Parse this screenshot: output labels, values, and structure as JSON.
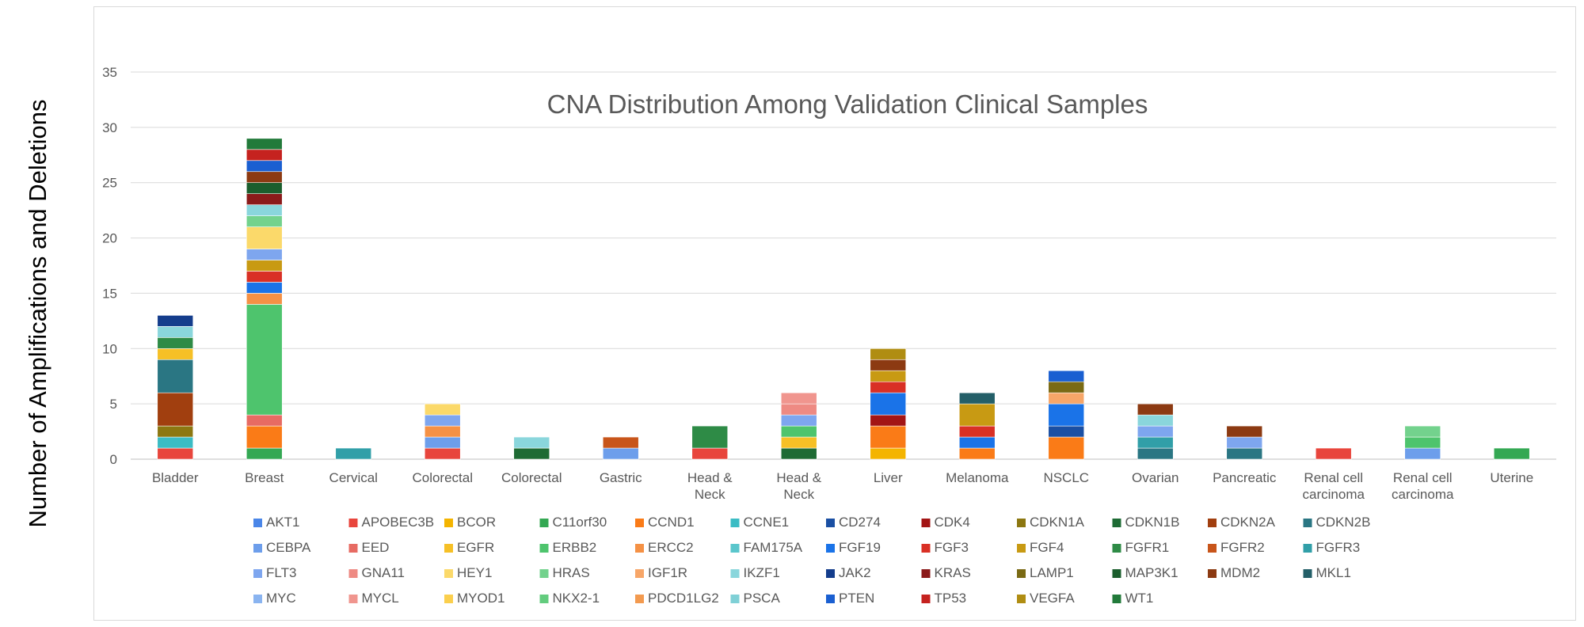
{
  "chart_data": {
    "type": "bar",
    "stacked": true,
    "title": "CNA Distribution Among Validation Clinical Samples",
    "xlabel": "",
    "ylabel": "Number of Amplifications and Deletions",
    "ylim": [
      0,
      35
    ],
    "yticks": [
      0,
      5,
      10,
      15,
      20,
      25,
      30,
      35
    ],
    "grid": true,
    "legend_position": "bottom",
    "categories": [
      "Bladder",
      "Breast",
      "Cervical",
      "Colorectal",
      "Colorectal",
      "Gastric",
      "Head & Neck",
      "Head & Neck",
      "Liver",
      "Melanoma",
      "NSCLC",
      "Ovarian",
      "Pancreatic",
      "Renal cell carcinoma",
      "Renal cell carcinoma",
      "Uterine"
    ],
    "series": [
      {
        "name": "AKT1",
        "color": "#4a86e8",
        "values": [
          0,
          0,
          0,
          0,
          0,
          0,
          0,
          0,
          0,
          0,
          0,
          0,
          0,
          0,
          0,
          0
        ]
      },
      {
        "name": "APOBEC3B",
        "color": "#e8453c",
        "values": [
          1,
          0,
          0,
          1,
          0,
          0,
          1,
          0,
          0,
          0,
          0,
          0,
          0,
          1,
          0,
          0
        ]
      },
      {
        "name": "BCOR",
        "color": "#f4b400",
        "values": [
          0,
          0,
          0,
          0,
          0,
          0,
          0,
          0,
          1,
          0,
          0,
          0,
          0,
          0,
          0,
          0
        ]
      },
      {
        "name": "C11orf30",
        "color": "#34a853",
        "values": [
          0,
          1,
          0,
          0,
          0,
          0,
          0,
          0,
          0,
          0,
          0,
          0,
          0,
          0,
          0,
          1
        ]
      },
      {
        "name": "CCND1",
        "color": "#fa7b17",
        "values": [
          0,
          2,
          0,
          0,
          0,
          0,
          0,
          0,
          2,
          1,
          2,
          0,
          0,
          0,
          0,
          0
        ]
      },
      {
        "name": "CCNE1",
        "color": "#3bbcc4",
        "values": [
          1,
          0,
          0,
          0,
          0,
          0,
          0,
          0,
          0,
          0,
          0,
          0,
          0,
          0,
          0,
          0
        ]
      },
      {
        "name": "CD274",
        "color": "#1a4fa3",
        "values": [
          0,
          0,
          0,
          0,
          0,
          0,
          0,
          0,
          0,
          0,
          1,
          0,
          0,
          0,
          0,
          0
        ]
      },
      {
        "name": "CDK4",
        "color": "#a31515",
        "values": [
          0,
          0,
          0,
          0,
          0,
          0,
          0,
          0,
          1,
          0,
          0,
          0,
          0,
          0,
          0,
          0
        ]
      },
      {
        "name": "CDKN1A",
        "color": "#8c7711",
        "values": [
          1,
          0,
          0,
          0,
          0,
          0,
          0,
          0,
          0,
          0,
          0,
          0,
          0,
          0,
          0,
          0
        ]
      },
      {
        "name": "CDKN1B",
        "color": "#1e6b34",
        "values": [
          0,
          0,
          0,
          0,
          1,
          0,
          0,
          1,
          0,
          0,
          0,
          0,
          0,
          0,
          0,
          0
        ]
      },
      {
        "name": "CDKN2A",
        "color": "#a13f0f",
        "values": [
          3,
          0,
          0,
          0,
          0,
          0,
          0,
          0,
          0,
          0,
          0,
          0,
          0,
          0,
          0,
          0
        ]
      },
      {
        "name": "CDKN2B",
        "color": "#2a7683",
        "values": [
          3,
          0,
          0,
          0,
          0,
          0,
          0,
          0,
          0,
          0,
          0,
          1,
          1,
          0,
          0,
          0
        ]
      },
      {
        "name": "CEBPA",
        "color": "#6d9eeb",
        "values": [
          0,
          0,
          0,
          1,
          0,
          1,
          0,
          0,
          0,
          0,
          0,
          0,
          0,
          0,
          1,
          0
        ]
      },
      {
        "name": "EED",
        "color": "#e76b63",
        "values": [
          0,
          1,
          0,
          0,
          0,
          0,
          0,
          0,
          0,
          0,
          0,
          0,
          0,
          0,
          0,
          0
        ]
      },
      {
        "name": "EGFR",
        "color": "#f6c026",
        "values": [
          1,
          0,
          0,
          0,
          0,
          0,
          0,
          1,
          0,
          0,
          0,
          0,
          0,
          0,
          0,
          0
        ]
      },
      {
        "name": "ERBB2",
        "color": "#4ec46d",
        "values": [
          0,
          10,
          0,
          0,
          0,
          0,
          0,
          1,
          0,
          0,
          0,
          0,
          0,
          0,
          1,
          0
        ]
      },
      {
        "name": "ERCC2",
        "color": "#f59145",
        "values": [
          0,
          1,
          0,
          1,
          0,
          0,
          0,
          0,
          0,
          0,
          0,
          0,
          0,
          0,
          0,
          0
        ]
      },
      {
        "name": "FAM175A",
        "color": "#5ac6cc",
        "values": [
          0,
          0,
          0,
          0,
          0,
          0,
          0,
          0,
          0,
          0,
          0,
          0,
          0,
          0,
          0,
          0
        ]
      },
      {
        "name": "FGF19",
        "color": "#1a73e8",
        "values": [
          0,
          1,
          0,
          0,
          0,
          0,
          0,
          0,
          2,
          1,
          2,
          0,
          0,
          0,
          0,
          0
        ]
      },
      {
        "name": "FGF3",
        "color": "#d93025",
        "values": [
          0,
          1,
          0,
          0,
          0,
          0,
          0,
          0,
          1,
          1,
          0,
          0,
          0,
          0,
          0,
          0
        ]
      },
      {
        "name": "FGF4",
        "color": "#c89a13",
        "values": [
          0,
          1,
          0,
          0,
          0,
          0,
          0,
          0,
          1,
          2,
          0,
          0,
          0,
          0,
          0,
          0
        ]
      },
      {
        "name": "FGFR1",
        "color": "#2e8b46",
        "values": [
          1,
          0,
          0,
          0,
          0,
          0,
          2,
          0,
          0,
          0,
          0,
          0,
          0,
          0,
          0,
          0
        ]
      },
      {
        "name": "FGFR2",
        "color": "#c8551a",
        "values": [
          0,
          0,
          0,
          0,
          0,
          1,
          0,
          0,
          0,
          0,
          0,
          0,
          0,
          0,
          0,
          0
        ]
      },
      {
        "name": "FGFR3",
        "color": "#319fa8",
        "values": [
          0,
          0,
          1,
          0,
          0,
          0,
          0,
          0,
          0,
          0,
          0,
          1,
          0,
          0,
          0,
          0
        ]
      },
      {
        "name": "FLT3",
        "color": "#7ea6ef",
        "values": [
          0,
          1,
          0,
          1,
          0,
          0,
          0,
          1,
          0,
          0,
          0,
          1,
          1,
          0,
          0,
          0
        ]
      },
      {
        "name": "GNA11",
        "color": "#ee8a83",
        "values": [
          0,
          0,
          0,
          0,
          0,
          0,
          0,
          1,
          0,
          0,
          0,
          0,
          0,
          0,
          0,
          0
        ]
      },
      {
        "name": "HEY1",
        "color": "#fbd96a",
        "values": [
          0,
          2,
          0,
          1,
          0,
          0,
          0,
          0,
          0,
          0,
          0,
          0,
          0,
          0,
          0,
          0
        ]
      },
      {
        "name": "HRAS",
        "color": "#73d28d",
        "values": [
          0,
          1,
          0,
          0,
          0,
          0,
          0,
          0,
          0,
          0,
          0,
          0,
          0,
          0,
          1,
          0
        ]
      },
      {
        "name": "IGF1R",
        "color": "#f7a668",
        "values": [
          0,
          0,
          0,
          0,
          0,
          0,
          0,
          0,
          0,
          0,
          1,
          0,
          0,
          0,
          0,
          0
        ]
      },
      {
        "name": "IKZF1",
        "color": "#8ad6dc",
        "values": [
          1,
          1,
          0,
          0,
          1,
          0,
          0,
          0,
          0,
          0,
          0,
          1,
          0,
          0,
          0,
          0
        ]
      },
      {
        "name": "JAK2",
        "color": "#143d8c",
        "values": [
          1,
          0,
          0,
          0,
          0,
          0,
          0,
          0,
          0,
          0,
          0,
          0,
          0,
          0,
          0,
          0
        ]
      },
      {
        "name": "KRAS",
        "color": "#8b1a1a",
        "values": [
          0,
          1,
          0,
          0,
          0,
          0,
          0,
          0,
          0,
          0,
          0,
          0,
          0,
          0,
          0,
          0
        ]
      },
      {
        "name": "LAMP1",
        "color": "#7a6a14",
        "values": [
          0,
          0,
          0,
          0,
          0,
          0,
          0,
          0,
          0,
          0,
          1,
          0,
          0,
          0,
          0,
          0
        ]
      },
      {
        "name": "MAP3K1",
        "color": "#1b5e2d",
        "values": [
          0,
          1,
          0,
          0,
          0,
          0,
          0,
          0,
          0,
          0,
          0,
          0,
          0,
          0,
          0,
          0
        ]
      },
      {
        "name": "MDM2",
        "color": "#8c3a12",
        "values": [
          0,
          1,
          0,
          0,
          0,
          0,
          0,
          0,
          1,
          0,
          0,
          1,
          1,
          0,
          0,
          0
        ]
      },
      {
        "name": "MKL1",
        "color": "#245f68",
        "values": [
          0,
          0,
          0,
          0,
          0,
          0,
          0,
          0,
          0,
          1,
          0,
          0,
          0,
          0,
          0,
          0
        ]
      },
      {
        "name": "MYC",
        "color": "#8ab4f0",
        "values": [
          0,
          0,
          0,
          0,
          0,
          0,
          0,
          0,
          0,
          0,
          0,
          0,
          0,
          0,
          0,
          0
        ]
      },
      {
        "name": "MYCL",
        "color": "#f0958e",
        "values": [
          0,
          0,
          0,
          0,
          0,
          0,
          0,
          1,
          0,
          0,
          0,
          0,
          0,
          0,
          0,
          0
        ]
      },
      {
        "name": "MYOD1",
        "color": "#fbcf4d",
        "values": [
          0,
          0,
          0,
          0,
          0,
          0,
          0,
          0,
          0,
          0,
          0,
          0,
          0,
          0,
          0,
          0
        ]
      },
      {
        "name": "NKX2-1",
        "color": "#63cc7e",
        "values": [
          0,
          0,
          0,
          0,
          0,
          0,
          0,
          0,
          0,
          0,
          0,
          0,
          0,
          0,
          0,
          0
        ]
      },
      {
        "name": "PDCD1LG2",
        "color": "#f39a4f",
        "values": [
          0,
          0,
          0,
          0,
          0,
          0,
          0,
          0,
          0,
          0,
          0,
          0,
          0,
          0,
          0,
          0
        ]
      },
      {
        "name": "PSCA",
        "color": "#7fd0d6",
        "values": [
          0,
          0,
          0,
          0,
          0,
          0,
          0,
          0,
          0,
          0,
          0,
          0,
          0,
          0,
          0,
          0
        ]
      },
      {
        "name": "PTEN",
        "color": "#1a5fd1",
        "values": [
          0,
          1,
          0,
          0,
          0,
          0,
          0,
          0,
          0,
          0,
          1,
          0,
          0,
          0,
          0,
          0
        ]
      },
      {
        "name": "TP53",
        "color": "#c5221f",
        "values": [
          0,
          1,
          0,
          0,
          0,
          0,
          0,
          0,
          0,
          0,
          0,
          0,
          0,
          0,
          0,
          0
        ]
      },
      {
        "name": "VEGFA",
        "color": "#b08d12",
        "values": [
          0,
          0,
          0,
          0,
          0,
          0,
          0,
          0,
          1,
          0,
          0,
          0,
          0,
          0,
          0,
          0
        ]
      },
      {
        "name": "WT1",
        "color": "#227a3a",
        "values": [
          0,
          1,
          0,
          0,
          0,
          0,
          0,
          0,
          0,
          0,
          0,
          0,
          0,
          0,
          0,
          0
        ]
      }
    ]
  }
}
